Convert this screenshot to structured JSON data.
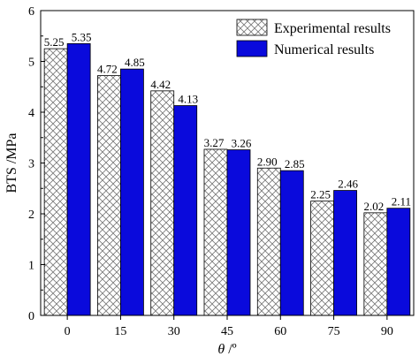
{
  "chart_data": {
    "type": "bar",
    "xlabel": "θ /º",
    "ylabel": "BTS /MPa",
    "ylim": [
      0,
      6
    ],
    "yticks": [
      "0",
      "1",
      "2",
      "3",
      "4",
      "5",
      "6"
    ],
    "categories": [
      "0",
      "15",
      "30",
      "45",
      "60",
      "75",
      "90"
    ],
    "grid": false,
    "legend_position": "top-right",
    "series": [
      {
        "name": "Experimental results",
        "pattern": "crosshatch",
        "color": "#ffffff",
        "values": [
          5.25,
          4.72,
          4.42,
          3.27,
          2.9,
          2.25,
          2.02
        ],
        "labels": [
          "5.25",
          "4.72",
          "4.42",
          "3.27",
          "2.90",
          "2.25",
          "2.02"
        ]
      },
      {
        "name": "Numerical results",
        "pattern": "solid",
        "color": "#0a0adc",
        "values": [
          5.35,
          4.85,
          4.13,
          3.26,
          2.85,
          2.46,
          2.11
        ],
        "labels": [
          "5.35",
          "4.85",
          "4.13",
          "3.26",
          "2.85",
          "2.46",
          "2.11"
        ]
      }
    ]
  }
}
